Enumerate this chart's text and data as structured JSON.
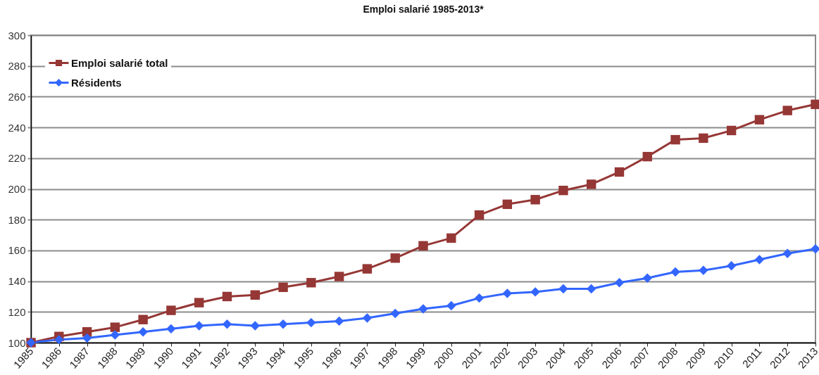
{
  "chart_data": {
    "type": "line",
    "title": "Emploi salarié 1985-2013*",
    "categories": [
      "1985",
      "1986",
      "1987",
      "1988",
      "1989",
      "1990",
      "1991",
      "1992",
      "1993",
      "1994",
      "1995",
      "1996",
      "1997",
      "1998",
      "1999",
      "2000",
      "2001",
      "2002",
      "2003",
      "2004",
      "2005",
      "2006",
      "2007",
      "2008",
      "2009",
      "2010",
      "2011",
      "2012",
      "2013"
    ],
    "series": [
      {
        "name": "Emploi salarié total",
        "color": "#953735",
        "marker": "square",
        "values": [
          100,
          104,
          107,
          110,
          115,
          121,
          126,
          130,
          131,
          136,
          139,
          143,
          148,
          155,
          163,
          168,
          183,
          190,
          193,
          199,
          203,
          211,
          221,
          232,
          233,
          238,
          245,
          251,
          255
        ]
      },
      {
        "name": "Résidents",
        "color": "#3366ff",
        "marker": "diamond",
        "values": [
          100,
          102,
          103,
          105,
          107,
          109,
          111,
          112,
          111,
          112,
          113,
          114,
          116,
          119,
          122,
          124,
          129,
          132,
          133,
          135,
          135,
          139,
          142,
          146,
          147,
          150,
          154,
          158,
          161
        ]
      }
    ],
    "ylim": [
      100,
      300
    ],
    "yticks": [
      100,
      120,
      140,
      160,
      180,
      200,
      220,
      240,
      260,
      280,
      300
    ],
    "grid": "y",
    "legend": "top left",
    "line_style": "solid"
  }
}
